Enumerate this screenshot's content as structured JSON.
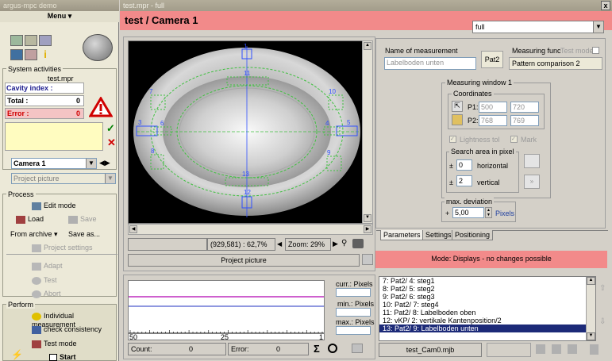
{
  "left": {
    "app_title": "argus-mpc demo",
    "menu_label": "Menu ▾",
    "system_activities": {
      "section_title": "System activities",
      "file": "test.mpr",
      "cavity_label": "Cavity index :",
      "total_label": "Total :",
      "total_value": "0",
      "error_label": "Error :",
      "error_value": "0"
    },
    "camera_select": "Camera 1",
    "project_picture": "Project picture",
    "process": {
      "section_title": "Process",
      "edit_mode": "Edit mode",
      "load": "Load",
      "save": "Save",
      "from_archive": "From archive ▾",
      "save_as": "Save as...",
      "project_settings": "Project settings",
      "adapt": "Adapt",
      "test": "Test",
      "abort": "Abort"
    },
    "perform": {
      "section_title": "Perform",
      "individual_measurement": "Individual measurement",
      "check_consistency": "check consistency",
      "test_mode": "Test mode",
      "start": "Start"
    }
  },
  "window": {
    "title": "test.mpr - full",
    "close": "x",
    "header_title": "test / Camera 1",
    "view_select": "full"
  },
  "image": {
    "labels": [
      "1",
      "2",
      "3",
      "4",
      "5",
      "6",
      "7",
      "8",
      "9",
      "10",
      "11",
      "12",
      "13"
    ]
  },
  "status_bar": {
    "coords": "(929,581) : 62,7%",
    "zoom_label": "Zoom:",
    "zoom_value": "29%",
    "project_picture_button": "Project picture"
  },
  "measurement": {
    "name_label": "Name of measurement",
    "name_value": "Labelboden unten",
    "id_badge": "Pat2",
    "func_label": "Measuring func",
    "test_mode_label": "Test mode",
    "func_value": "Pattern comparison 2",
    "window_title": "Measuring window 1",
    "coords_title": "Coordinates",
    "p1_label": "P1:",
    "p1_x": "500",
    "p1_y": "720",
    "p2_label": "P2:",
    "p2_x": "768",
    "p2_y": "769",
    "lightness_label": "Lightness tol",
    "mark_label": "Mark",
    "search_title": "Search area in pixel",
    "pm": "±",
    "horizontal_value": "0",
    "horizontal_label": "horizontal",
    "vertical_value": "2",
    "vertical_label": "vertical",
    "deviation_title": "max. deviation",
    "plus": "+",
    "deviation_value": "5,00",
    "deviation_unit": "Pixels"
  },
  "tabs": [
    "Parameters",
    "Settings",
    "Positioning"
  ],
  "mode_text": "Mode: Displays - no changes possible",
  "graph": {
    "x_ticks": [
      "50",
      "25",
      "1"
    ],
    "curr_label": "curr.: Pixels",
    "min_label": "min.: Pixels",
    "max_label": "max.: Pixels",
    "count_label": "Count:",
    "count_value": "0",
    "error_label": "Error:",
    "error_value": "0",
    "sigma": "Σ"
  },
  "list": {
    "items": [
      "7: Pat2/ 4: steg1",
      "8: Pat2/ 5: steg2",
      "9: Pat2/ 6: steg3",
      "10: Pat2/ 7: steg4",
      "11: Pat2/ 8: Labelboden oben",
      "12: vKP/ 2: vertikale Kantenposition/2",
      "13: Pat2/ 9: Labelboden unten"
    ],
    "selected_index": 6,
    "file_button": "test_Cam0.mjb"
  },
  "colors": {
    "header_band": "#f28a8a",
    "selection": "#1c2a78",
    "graph_line_magenta": "#b000b0",
    "graph_line_blue": "#2030c0",
    "overlay_blue": "#3050ff",
    "overlay_green": "#40c040"
  }
}
